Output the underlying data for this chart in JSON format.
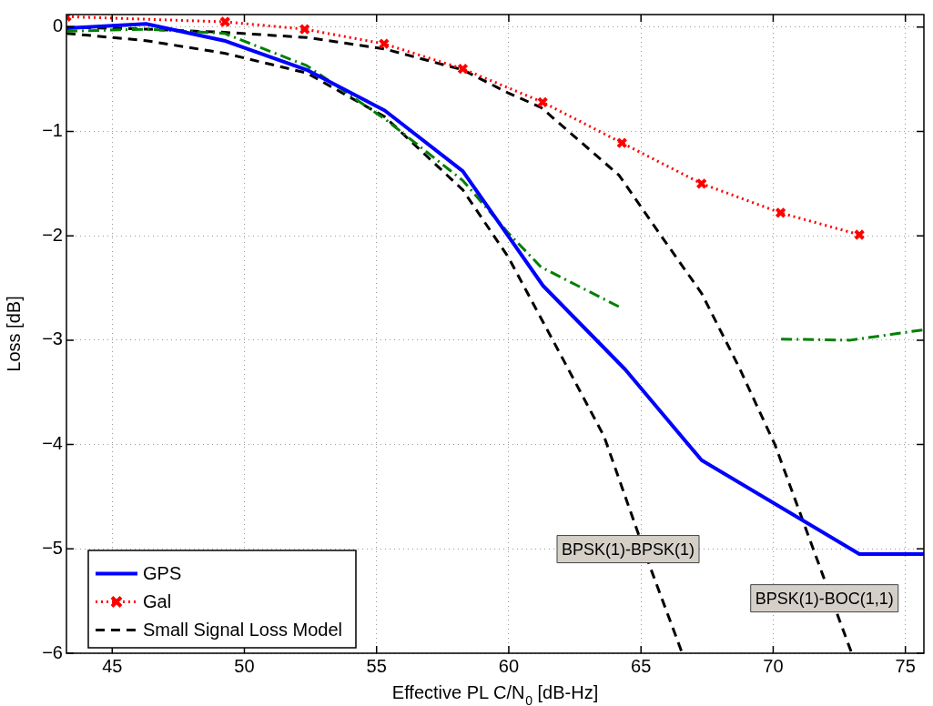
{
  "chart_data": {
    "type": "line",
    "xlabel": "Effective PL C/N$_{0}$ [dB-Hz]",
    "ylabel": "Loss [dB]",
    "xlim": [
      43.27,
      75.7
    ],
    "ylim": [
      -6,
      0.12
    ],
    "xticks": [
      45,
      50,
      55,
      60,
      65,
      70,
      75
    ],
    "yticks": [
      -6,
      -5,
      -4,
      -3,
      -2,
      -1,
      0
    ],
    "grid": true,
    "legend": "bottom left",
    "series": [
      {
        "name": "GPS",
        "color": "#0000ff",
        "line_style": "solid",
        "marker": "none",
        "x": [
          43.27,
          46.28,
          49.24,
          52.36,
          55.31,
          58.26,
          61.3,
          64.4,
          67.29,
          73.26,
          75.7
        ],
        "values": [
          -0.01,
          0.03,
          -0.13,
          -0.41,
          -0.8,
          -1.38,
          -2.48,
          -3.28,
          -4.15,
          -5.05,
          -5.05
        ]
      },
      {
        "color": "#008000",
        "line_style": "dashdot",
        "marker": "none",
        "x": [
          43.27,
          46.28,
          49.24,
          52.36,
          55.31,
          58.26,
          59.97,
          61.22,
          64.17,
          67.2,
          70.3,
          72.92,
          75.7
        ],
        "values": [
          -0.04,
          -0.02,
          -0.06,
          -0.37,
          -0.88,
          -1.47,
          -1.97,
          -2.3,
          -2.68,
          null,
          -2.99,
          -3.0,
          -2.9
        ]
      },
      {
        "name": "Gal",
        "color": "#ff0000",
        "line_style": "dotted",
        "marker": "cross",
        "x": [
          43.27,
          49.27,
          52.28,
          55.28,
          58.26,
          61.28,
          64.28,
          67.29,
          70.28,
          73.26
        ],
        "values": [
          0.1,
          0.05,
          -0.02,
          -0.16,
          -0.4,
          -0.72,
          -1.11,
          -1.5,
          -1.78,
          -1.99
        ]
      },
      {
        "name": "Small Signal Loss Model",
        "color": "#000000",
        "line_style": "dashed",
        "marker": "none",
        "x": [
          43.27,
          46.28,
          49.24,
          52.36,
          55.31,
          58.26,
          59.97,
          62.13,
          63.6,
          65.31,
          66.56
        ],
        "values": [
          -0.06,
          -0.13,
          -0.25,
          -0.44,
          -0.86,
          -1.56,
          -2.2,
          -3.22,
          -3.92,
          -5.15,
          -6.0
        ]
      },
      {
        "color": "#000000",
        "line_style": "dashed",
        "marker": "none",
        "x": [
          43.27,
          46.28,
          49.24,
          52.36,
          55.31,
          58.26,
          59.97,
          61.22,
          64.17,
          65.76,
          67.29,
          68.71,
          70.08,
          71.89,
          72.97
        ],
        "values": [
          0,
          -0.02,
          -0.05,
          -0.1,
          -0.21,
          -0.41,
          -0.63,
          -0.77,
          -1.42,
          -2.0,
          -2.55,
          -3.26,
          -4.01,
          -5.26,
          -6.0
        ]
      }
    ],
    "annotations": [
      "BPSK(1)-BPSK(1)",
      "BPSK(1)-BOC(1,1)"
    ]
  }
}
